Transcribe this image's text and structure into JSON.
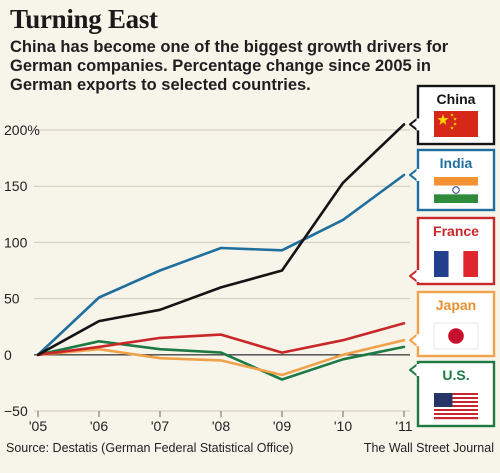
{
  "header": {
    "title": "Turning East",
    "subtitle": "China has become one of the biggest growth drivers for German companies. Percentage change since 2005 in German exports to selected countries."
  },
  "footer": {
    "source": "Source: Destatis (German Federal Statistical Office)",
    "credit": "The Wall Street Journal"
  },
  "chart_data": {
    "type": "line",
    "title": "Turning East",
    "x": [
      "'05",
      "'06",
      "'07",
      "'08",
      "'09",
      "'10",
      "'11"
    ],
    "yticks": [
      "200%",
      "150",
      "100",
      "50",
      "0",
      "−50"
    ],
    "ytick_values": [
      200,
      150,
      100,
      50,
      0,
      -50
    ],
    "ylim": [
      -50,
      200
    ],
    "grid": "horizontal",
    "series": [
      {
        "name": "China",
        "color": "#141414",
        "values": [
          0,
          30,
          40,
          60,
          75,
          153,
          205
        ]
      },
      {
        "name": "India",
        "color": "#1f6f9e",
        "values": [
          0,
          51,
          75,
          95,
          93,
          120,
          160
        ]
      },
      {
        "name": "France",
        "color": "#c8282a",
        "values": [
          0,
          7,
          15,
          18,
          2,
          13,
          28
        ]
      },
      {
        "name": "Japan",
        "color": "#f0a24a",
        "values": [
          0,
          5,
          -3,
          -5,
          -18,
          0,
          13
        ]
      },
      {
        "name": "U.S.",
        "color": "#1e7a45",
        "values": [
          0,
          12,
          5,
          2,
          -22,
          -4,
          7
        ]
      }
    ]
  },
  "legend": {
    "placement": "right",
    "items": [
      {
        "label": "China",
        "color": "#141414",
        "flag": "china-flag"
      },
      {
        "label": "India",
        "color": "#1f6f9e",
        "flag": "india-flag"
      },
      {
        "label": "France",
        "color": "#c8282a",
        "flag": "france-flag"
      },
      {
        "label": "Japan",
        "color": "#f0a24a",
        "flag": "japan-flag"
      },
      {
        "label": "U.S.",
        "color": "#1e7a45",
        "flag": "us-flag"
      }
    ]
  }
}
